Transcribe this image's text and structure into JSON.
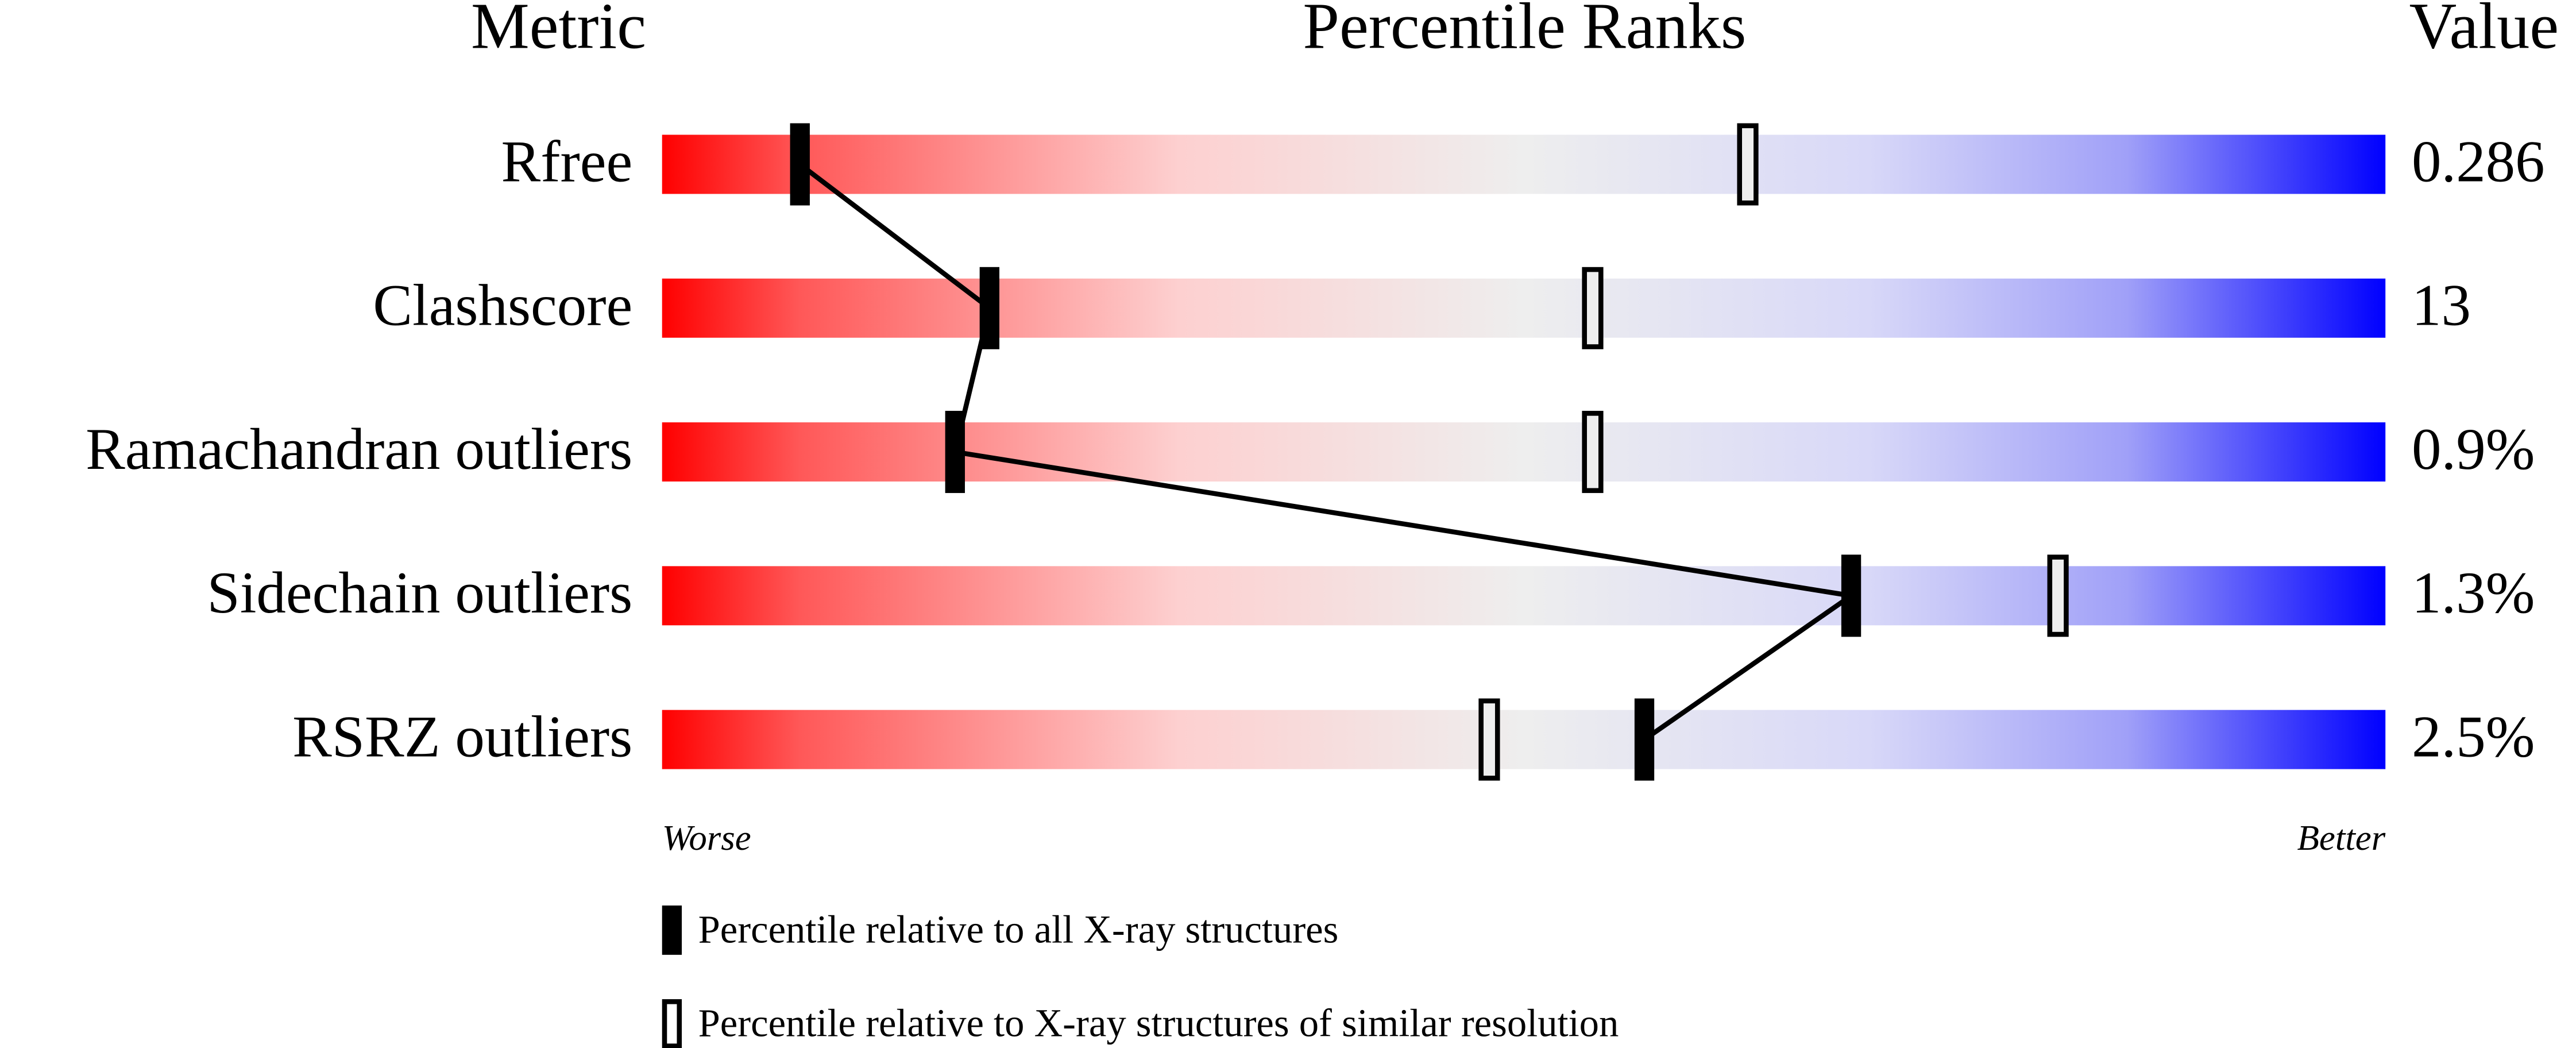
{
  "chart_data": {
    "type": "percentile",
    "header": {
      "metric": "Metric",
      "ranks": "Percentile Ranks",
      "value": "Value"
    },
    "categories": [
      "Rfree",
      "Clashscore",
      "Ramachandran outliers",
      "Sidechain outliers",
      "RSRZ outliers"
    ],
    "metric_values": [
      "0.286",
      "13",
      "0.9%",
      "1.3%",
      "2.5%"
    ],
    "xlim": [
      0,
      100
    ],
    "xlabel_low": "Worse",
    "xlabel_high": "Better",
    "series": [
      {
        "name": "Percentile relative to all X-ray structures",
        "color": "#000000",
        "style": "filled",
        "values": [
          8,
          19,
          17,
          69,
          57
        ]
      },
      {
        "name": "Percentile relative to X-ray structures of similar resolution",
        "color": "#000000",
        "style": "open",
        "values": [
          63,
          54,
          54,
          81,
          48
        ]
      }
    ]
  }
}
